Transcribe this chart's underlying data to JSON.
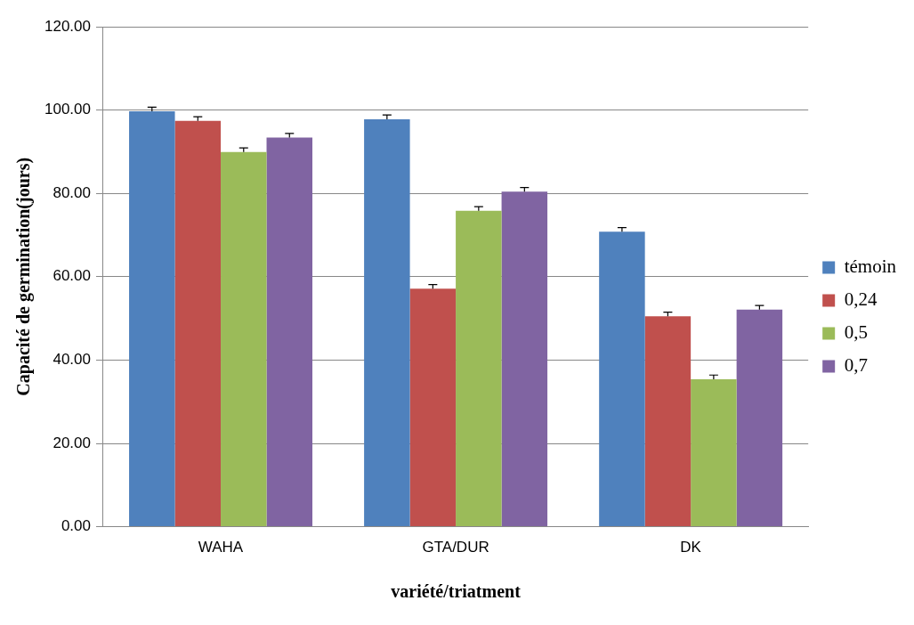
{
  "chart_data": {
    "type": "bar",
    "xlabel": "variété/triatment",
    "ylabel": "Capacité de germination(jours)",
    "categories": [
      "WAHA",
      "GTA/DUR",
      "DK"
    ],
    "series": [
      {
        "name": "témoin",
        "color": "#4f81bd",
        "values": [
          99.7,
          97.8,
          70.8
        ],
        "errors": [
          [
            99.7,
            100.7
          ],
          [
            97.8,
            98.8
          ],
          [
            70.8,
            71.8
          ]
        ]
      },
      {
        "name": "0,24",
        "color": "#c0504d",
        "values": [
          97.4,
          57.1,
          50.5
        ],
        "errors": [
          [
            97.4,
            98.4
          ],
          [
            57.1,
            58.1
          ],
          [
            50.5,
            51.5
          ]
        ]
      },
      {
        "name": "0,5",
        "color": "#9bbb59",
        "values": [
          89.9,
          75.8,
          35.4
        ],
        "errors": [
          [
            89.9,
            90.9
          ],
          [
            75.8,
            76.8
          ],
          [
            35.4,
            36.4
          ]
        ]
      },
      {
        "name": "0,7",
        "color": "#8064a2",
        "values": [
          93.4,
          80.4,
          52.1
        ],
        "errors": [
          [
            93.4,
            94.4
          ],
          [
            80.4,
            81.4
          ],
          [
            52.1,
            53.1
          ]
        ]
      }
    ],
    "ylim": [
      0,
      120
    ],
    "yticks": [
      {
        "value": 0,
        "label": "0.00"
      },
      {
        "value": 20,
        "label": "20.00"
      },
      {
        "value": 40,
        "label": "40.00"
      },
      {
        "value": 60,
        "label": "60.00"
      },
      {
        "value": 80,
        "label": "80.00"
      },
      {
        "value": 100,
        "label": "100.00"
      },
      {
        "value": 120,
        "label": "120.00"
      }
    ],
    "grid": "y",
    "legend": "right"
  }
}
